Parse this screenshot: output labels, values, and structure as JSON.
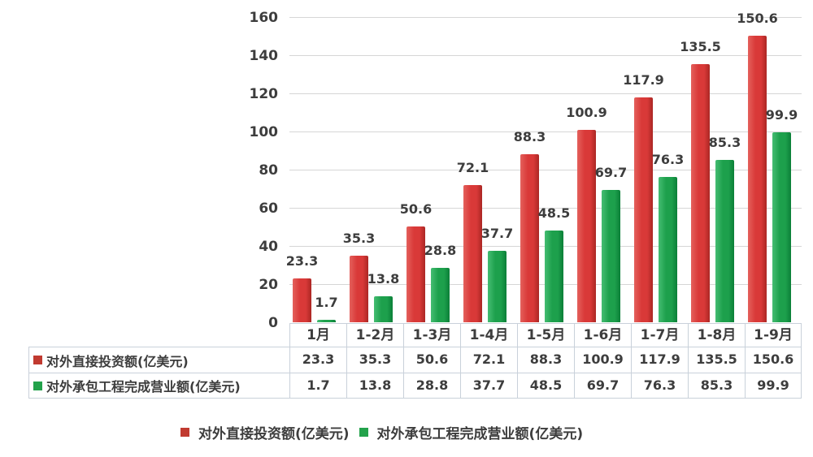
{
  "chart_data": {
    "type": "bar",
    "categories": [
      "1月",
      "1-2月",
      "1-3月",
      "1-4月",
      "1-5月",
      "1-6月",
      "1-7月",
      "1-8月",
      "1-9月"
    ],
    "series": [
      {
        "name": "对外直接投资额(亿美元)",
        "values": [
          23.3,
          35.3,
          50.6,
          72.1,
          88.3,
          100.9,
          117.9,
          135.5,
          150.6
        ],
        "key_color": "#c13a30",
        "bar_gradient": [
          "#e4605c",
          "#d93938",
          "#ab2724"
        ]
      },
      {
        "name": "对外承包工程完成营业额(亿美元)",
        "values": [
          1.7,
          13.8,
          28.8,
          37.7,
          48.5,
          69.7,
          76.3,
          85.3,
          99.9
        ],
        "key_color": "#23a24b",
        "bar_gradient": [
          "#45bd72",
          "#1da04c",
          "#0b7f38"
        ]
      }
    ],
    "ylim": [
      0,
      160
    ],
    "yticks": [
      0,
      20,
      40,
      60,
      80,
      100,
      120,
      140,
      160
    ],
    "grid": true,
    "value_labels": true,
    "show_data_table": true,
    "legend_position": "bottom",
    "colors": {
      "gridline": "#d6d6d6",
      "axis_text": "#3d3d3d",
      "table_border": "#c9d1da",
      "background": "#ffffff"
    }
  }
}
